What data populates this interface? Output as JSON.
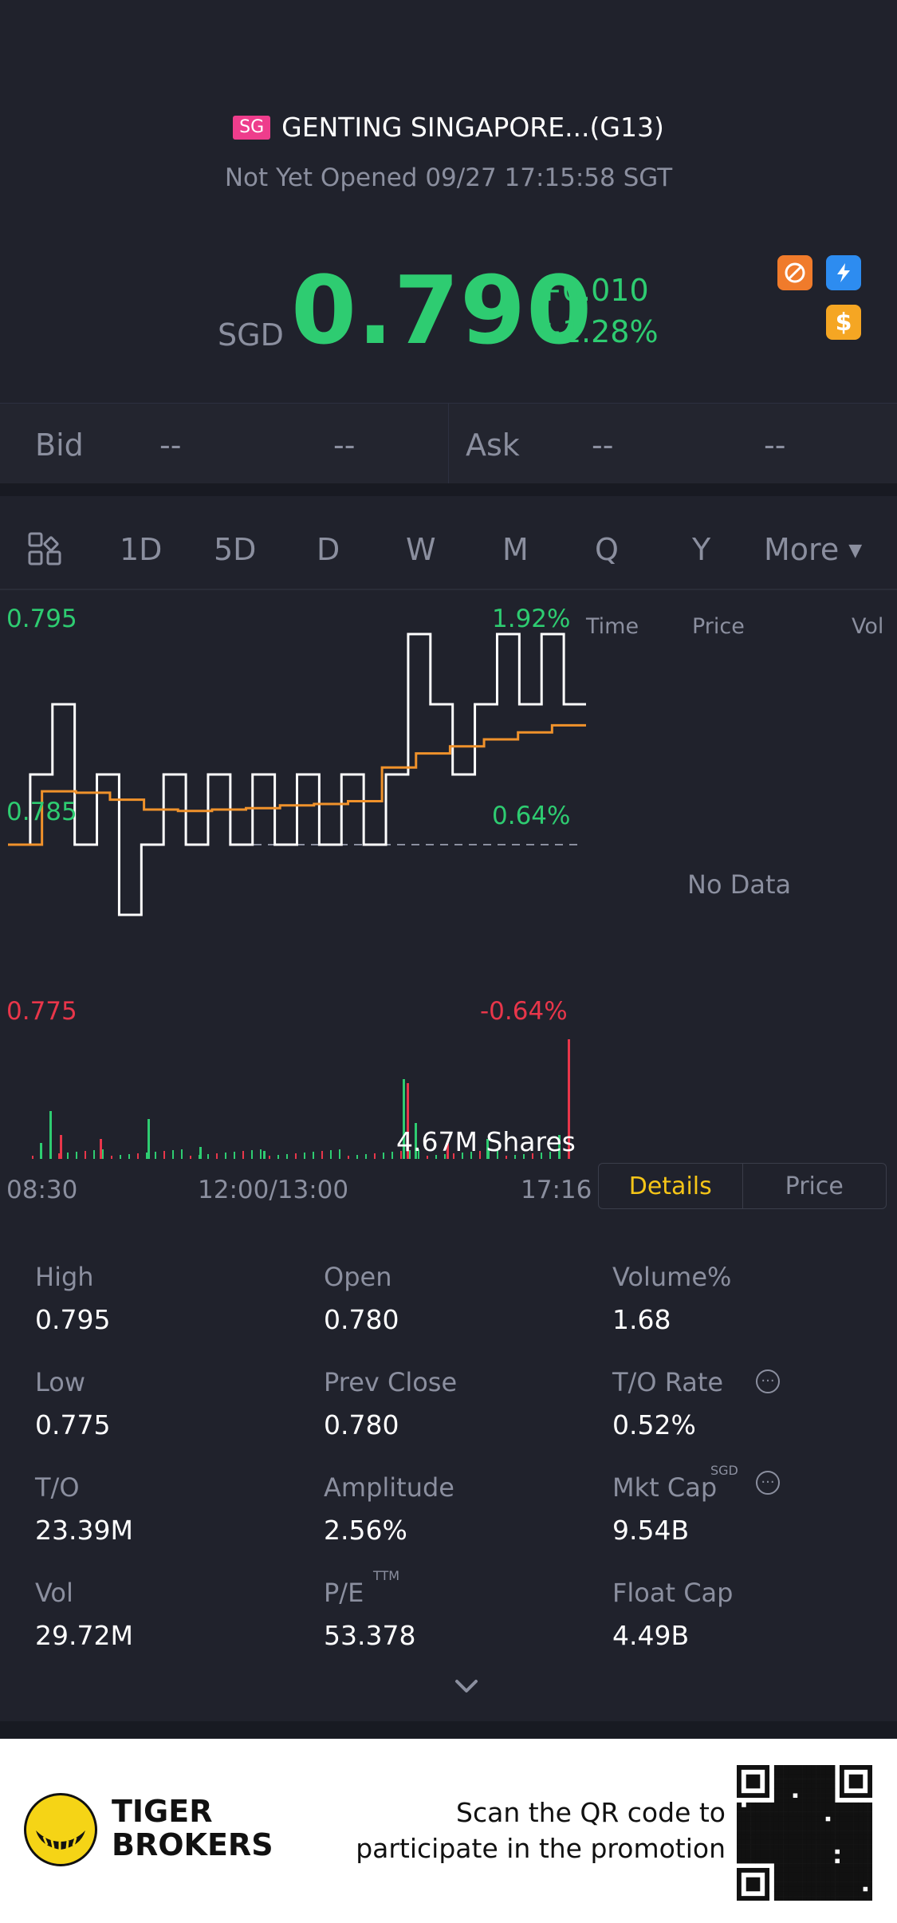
{
  "header": {
    "market_badge": "SG",
    "title": "GENTING SINGAPORE...(G13)",
    "status": "Not Yet Opened 09/27 17:15:58 SGT",
    "currency": "SGD",
    "price": "0.790",
    "change": "+0.010",
    "change_pct": "+1.28%",
    "icons": [
      "no-short-icon",
      "flash-icon",
      "dollar-icon"
    ]
  },
  "quote": {
    "bid_label": "Bid",
    "bid_values": [
      "--",
      "--"
    ],
    "ask_label": "Ask",
    "ask_values": [
      "--",
      "--"
    ]
  },
  "tabs": {
    "items": [
      "1D",
      "5D",
      "D",
      "W",
      "M",
      "Q",
      "Y",
      "More"
    ],
    "active": "1D"
  },
  "chart_data": {
    "type": "line",
    "y_ticks": [
      "0.795",
      "0.785",
      "0.775"
    ],
    "pct_ticks": [
      "1.92%",
      "0.64%",
      "-0.64%"
    ],
    "x_ticks": [
      "08:30",
      "12:00/13:00",
      "17:16"
    ],
    "volume_label": "4.67M Shares",
    "prev_close": 0.78,
    "series": [
      {
        "values": [
          0.78,
          0.785,
          0.79,
          0.78,
          0.785,
          0.775,
          0.78,
          0.785,
          0.78,
          0.785,
          0.78,
          0.785,
          0.78,
          0.785,
          0.78,
          0.785,
          0.78,
          0.785,
          0.795,
          0.79,
          0.785,
          0.79,
          0.795,
          0.79,
          0.795,
          0.79
        ]
      },
      {
        "values": [
          0.78,
          0.7838,
          0.7837,
          0.7832,
          0.7825,
          0.7824,
          0.7825,
          0.7826,
          0.7828,
          0.7829,
          0.7831,
          0.7855,
          0.7865,
          0.787,
          0.7875,
          0.788,
          0.7885
        ]
      }
    ]
  },
  "side_table": {
    "headers": [
      "Time",
      "Price",
      "Vol"
    ],
    "empty_text": "No Data"
  },
  "segment": {
    "items": [
      "Details",
      "Price"
    ],
    "active": "Details"
  },
  "stats": [
    {
      "label": "High",
      "value": "0.795"
    },
    {
      "label": "Open",
      "value": "0.780"
    },
    {
      "label": "Volume%",
      "value": "1.68"
    },
    {
      "label": "Low",
      "value": "0.775"
    },
    {
      "label": "Prev Close",
      "value": "0.780"
    },
    {
      "label": "T/O Rate",
      "value": "0.52%"
    },
    {
      "label": "T/O",
      "value": "23.39M"
    },
    {
      "label": "Amplitude",
      "value": "2.56%"
    },
    {
      "label": "Mkt Cap",
      "value": "9.54B",
      "sup": "SGD"
    },
    {
      "label": "Vol",
      "value": "29.72M"
    },
    {
      "label": "P/E",
      "value": "53.378",
      "sup": "TTM"
    },
    {
      "label": "Float Cap",
      "value": "4.49B"
    }
  ],
  "footer": {
    "brand_line1": "TIGER",
    "brand_line2": "BROKERS",
    "promo_line1": "Scan the QR code to",
    "promo_line2": "participate in the promotion"
  },
  "colors": {
    "up": "#2ecc71",
    "down": "#e8364a",
    "accent": "#f5c518",
    "avg_line": "#f0922b",
    "background": "#20222c"
  }
}
